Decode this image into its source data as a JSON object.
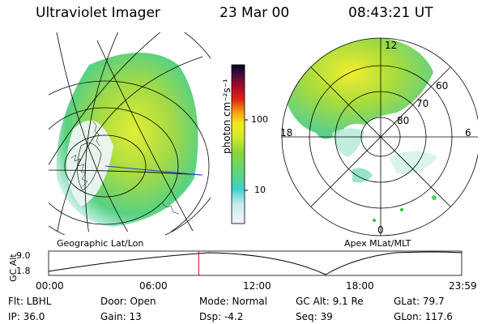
{
  "header": {
    "instrument": "Ultraviolet Imager",
    "date": "23 Mar 00",
    "time": "08:43:21 UT"
  },
  "left_panel": {
    "label": "Geographic Lat/Lon"
  },
  "right_panel": {
    "label": "Apex MLat/MLT",
    "mlt_labels": {
      "top": "12",
      "left": "18",
      "right": "6",
      "bottom": "0"
    },
    "lat_labels": [
      "60",
      "70",
      "80"
    ]
  },
  "colorbar": {
    "unit": "photon cm⁻²s⁻¹",
    "ticks": [
      "100",
      "10"
    ]
  },
  "altitude_plot": {
    "ylabel": "GC Alt",
    "yticks": [
      "9.0",
      "1.8"
    ],
    "xticks": [
      "00:00",
      "06:00",
      "12:00",
      "18:00",
      "23:59"
    ],
    "current_time_hours": 8.72,
    "marker_color": "#cc0000"
  },
  "status": {
    "flt": "Flt: LBHL",
    "ip": "IP: 36.0",
    "door": "Door: Open",
    "gain": "Gain: 13",
    "mode": "Mode: Normal",
    "dsp": "Dsp:    -4.2",
    "gc_alt": "GC Alt: 9.1 Re",
    "seq": "Seq: 39",
    "glat": "GLat:  79.7",
    "glon": "GLon: 117.6"
  }
}
